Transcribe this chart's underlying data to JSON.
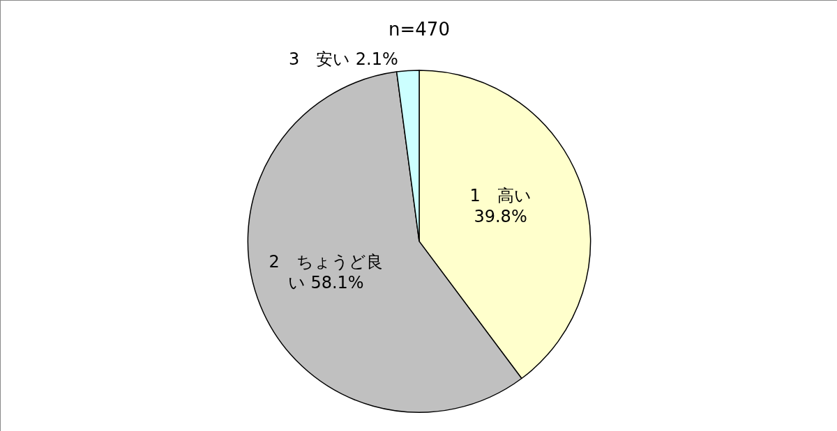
{
  "chart_data": {
    "type": "pie",
    "title": "n=470",
    "categories": [
      "1　高い",
      "2　ちょうど良い",
      "3　安い"
    ],
    "values": [
      39.8,
      58.1,
      2.1
    ],
    "value_labels": [
      "39.8%",
      "58.1%",
      "2.1%"
    ],
    "colors": [
      "#ffffcc",
      "#c0c0c0",
      "#ccffff"
    ],
    "legend": false
  }
}
